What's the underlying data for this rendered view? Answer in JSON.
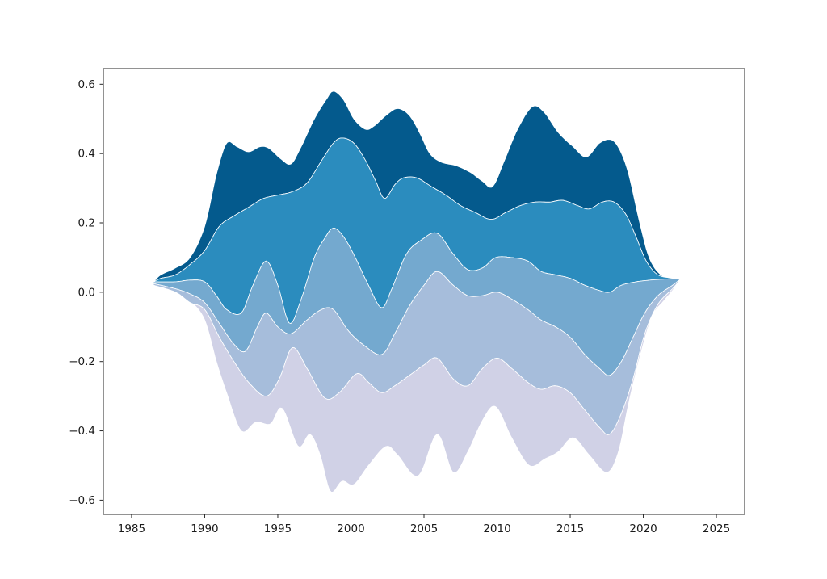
{
  "figure": {
    "background": "#ffffff",
    "spine_color": "#262626"
  },
  "chart_data": {
    "type": "area",
    "variant": "streamgraph",
    "title": "",
    "xlabel": "",
    "ylabel": "",
    "legend": "none",
    "grid": "off",
    "xlim": [
      1983.07,
      2026.93
    ],
    "ylim": [
      -0.641,
      0.645
    ],
    "x_ticks": [
      {
        "value": 1985,
        "label": "1985"
      },
      {
        "value": 1990,
        "label": "1990"
      },
      {
        "value": 1995,
        "label": "1995"
      },
      {
        "value": 2000,
        "label": "2000"
      },
      {
        "value": 2005,
        "label": "2005"
      },
      {
        "value": 2010,
        "label": "2010"
      },
      {
        "value": 2015,
        "label": "2015"
      },
      {
        "value": 2020,
        "label": "2020"
      },
      {
        "value": 2025,
        "label": "2025"
      }
    ],
    "y_ticks": [
      {
        "value": 0.6,
        "label": "0.6"
      },
      {
        "value": 0.4,
        "label": "0.4"
      },
      {
        "value": 0.2,
        "label": "0.2"
      },
      {
        "value": 0.0,
        "label": "0.0"
      },
      {
        "value": -0.2,
        "label": "−0.2"
      },
      {
        "value": -0.4,
        "label": "−0.4"
      },
      {
        "value": -0.6,
        "label": "−0.6"
      }
    ],
    "baseline": "symmetric (streamgraph / ThemeRiver), five stacked layers; layer thickness = boundary_above - boundary_below",
    "x_domain": [
      1986.5,
      2022.6
    ],
    "bands": [
      {
        "name": "layer-1",
        "color": "#045a8d",
        "top": "b0",
        "bottom": "b1"
      },
      {
        "name": "layer-2",
        "color": "#2b8cbe",
        "top": "b1",
        "bottom": "b2"
      },
      {
        "name": "layer-3",
        "color": "#74a9cf",
        "top": "b2",
        "bottom": "b3"
      },
      {
        "name": "layer-4",
        "color": "#a6bddb",
        "top": "b3",
        "bottom": "b4"
      },
      {
        "name": "layer-5",
        "color": "#d0d1e6",
        "top": "b4",
        "bottom": "b5"
      }
    ],
    "boundaries": {
      "b0": [
        [
          1986.5,
          0.03
        ],
        [
          1987,
          0.05
        ],
        [
          1988,
          0.07
        ],
        [
          1989,
          0.1
        ],
        [
          1990,
          0.19
        ],
        [
          1990.8,
          0.34
        ],
        [
          1991.5,
          0.43
        ],
        [
          1992.2,
          0.42
        ],
        [
          1993,
          0.405
        ],
        [
          1993.8,
          0.42
        ],
        [
          1994.4,
          0.415
        ],
        [
          1995.2,
          0.385
        ],
        [
          1995.9,
          0.37
        ],
        [
          1996.6,
          0.42
        ],
        [
          1997.5,
          0.5
        ],
        [
          1998.3,
          0.555
        ],
        [
          1998.8,
          0.58
        ],
        [
          1999.5,
          0.555
        ],
        [
          2000.2,
          0.5
        ],
        [
          2001,
          0.47
        ],
        [
          2001.6,
          0.48
        ],
        [
          2002.4,
          0.51
        ],
        [
          2003.2,
          0.53
        ],
        [
          2004,
          0.51
        ],
        [
          2004.7,
          0.46
        ],
        [
          2005.4,
          0.4
        ],
        [
          2006.2,
          0.375
        ],
        [
          2007.2,
          0.365
        ],
        [
          2008.2,
          0.345
        ],
        [
          2009,
          0.32
        ],
        [
          2009.7,
          0.305
        ],
        [
          2010.5,
          0.38
        ],
        [
          2011.4,
          0.47
        ],
        [
          2012.4,
          0.535
        ],
        [
          2013.2,
          0.52
        ],
        [
          2014.2,
          0.46
        ],
        [
          2015.2,
          0.42
        ],
        [
          2016.1,
          0.39
        ],
        [
          2017,
          0.43
        ],
        [
          2017.8,
          0.44
        ],
        [
          2018.4,
          0.41
        ],
        [
          2019,
          0.34
        ],
        [
          2019.7,
          0.21
        ],
        [
          2020.4,
          0.1
        ],
        [
          2021.2,
          0.05
        ],
        [
          2022,
          0.042
        ],
        [
          2022.6,
          0.04
        ]
      ],
      "b1": [
        [
          1986.5,
          0.03
        ],
        [
          1987,
          0.04
        ],
        [
          1988,
          0.05
        ],
        [
          1989,
          0.08
        ],
        [
          1990,
          0.12
        ],
        [
          1991,
          0.19
        ],
        [
          1992,
          0.22
        ],
        [
          1993,
          0.245
        ],
        [
          1994,
          0.27
        ],
        [
          1995,
          0.28
        ],
        [
          1996,
          0.29
        ],
        [
          1997,
          0.315
        ],
        [
          1998,
          0.38
        ],
        [
          1998.8,
          0.43
        ],
        [
          1999.4,
          0.445
        ],
        [
          2000.2,
          0.43
        ],
        [
          2001,
          0.38
        ],
        [
          2001.7,
          0.32
        ],
        [
          2002.3,
          0.27
        ],
        [
          2003,
          0.31
        ],
        [
          2003.6,
          0.33
        ],
        [
          2004.5,
          0.33
        ],
        [
          2005.5,
          0.305
        ],
        [
          2006.5,
          0.28
        ],
        [
          2007.5,
          0.25
        ],
        [
          2008.5,
          0.23
        ],
        [
          2009.6,
          0.21
        ],
        [
          2010.6,
          0.23
        ],
        [
          2011.6,
          0.25
        ],
        [
          2012.6,
          0.26
        ],
        [
          2013.6,
          0.26
        ],
        [
          2014.5,
          0.265
        ],
        [
          2015.5,
          0.25
        ],
        [
          2016.3,
          0.24
        ],
        [
          2017.2,
          0.26
        ],
        [
          2018,
          0.26
        ],
        [
          2018.8,
          0.225
        ],
        [
          2019.5,
          0.16
        ],
        [
          2020.2,
          0.09
        ],
        [
          2021,
          0.05
        ],
        [
          2022,
          0.041
        ],
        [
          2022.6,
          0.04
        ]
      ],
      "b2": [
        [
          1986.5,
          0.03
        ],
        [
          1988,
          0.03
        ],
        [
          1989,
          0.035
        ],
        [
          1990,
          0.03
        ],
        [
          1990.8,
          -0.01
        ],
        [
          1991.5,
          -0.05
        ],
        [
          1992.5,
          -0.06
        ],
        [
          1993.3,
          0.02
        ],
        [
          1994.2,
          0.09
        ],
        [
          1995,
          0.02
        ],
        [
          1995.8,
          -0.09
        ],
        [
          1996.6,
          -0.02
        ],
        [
          1997.5,
          0.1
        ],
        [
          1998.2,
          0.155
        ],
        [
          1998.8,
          0.185
        ],
        [
          1999.5,
          0.16
        ],
        [
          2000.3,
          0.1
        ],
        [
          2001.2,
          0.02
        ],
        [
          2002.1,
          -0.045
        ],
        [
          2002.8,
          0.01
        ],
        [
          2003.8,
          0.11
        ],
        [
          2004.8,
          0.15
        ],
        [
          2005.9,
          0.17
        ],
        [
          2007,
          0.11
        ],
        [
          2008,
          0.065
        ],
        [
          2009,
          0.07
        ],
        [
          2009.9,
          0.1
        ],
        [
          2011,
          0.1
        ],
        [
          2012.1,
          0.09
        ],
        [
          2013,
          0.06
        ],
        [
          2014,
          0.05
        ],
        [
          2015,
          0.04
        ],
        [
          2016,
          0.02
        ],
        [
          2017,
          0.005
        ],
        [
          2017.7,
          0.0
        ],
        [
          2018.5,
          0.02
        ],
        [
          2019.5,
          0.03
        ],
        [
          2020.5,
          0.035
        ],
        [
          2021.5,
          0.038
        ],
        [
          2022.6,
          0.04
        ]
      ],
      "b3": [
        [
          1986.5,
          0.025
        ],
        [
          1988,
          0.01
        ],
        [
          1989,
          -0.005
        ],
        [
          1990,
          -0.03
        ],
        [
          1991,
          -0.09
        ],
        [
          1992,
          -0.15
        ],
        [
          1992.8,
          -0.17
        ],
        [
          1993.6,
          -0.1
        ],
        [
          1994.2,
          -0.06
        ],
        [
          1995,
          -0.1
        ],
        [
          1995.9,
          -0.12
        ],
        [
          1997,
          -0.08
        ],
        [
          1998,
          -0.05
        ],
        [
          1998.8,
          -0.05
        ],
        [
          1999.8,
          -0.11
        ],
        [
          2000.8,
          -0.15
        ],
        [
          2002.1,
          -0.18
        ],
        [
          2003,
          -0.12
        ],
        [
          2004,
          -0.04
        ],
        [
          2005,
          0.02
        ],
        [
          2005.9,
          0.06
        ],
        [
          2007,
          0.02
        ],
        [
          2008,
          -0.01
        ],
        [
          2009,
          -0.01
        ],
        [
          2010,
          0.0
        ],
        [
          2011,
          -0.02
        ],
        [
          2012.1,
          -0.05
        ],
        [
          2013,
          -0.08
        ],
        [
          2014,
          -0.1
        ],
        [
          2015,
          -0.13
        ],
        [
          2016,
          -0.18
        ],
        [
          2017,
          -0.22
        ],
        [
          2017.7,
          -0.24
        ],
        [
          2018.5,
          -0.2
        ],
        [
          2019.3,
          -0.13
        ],
        [
          2020.1,
          -0.06
        ],
        [
          2021,
          -0.01
        ],
        [
          2022,
          0.02
        ],
        [
          2022.6,
          0.04
        ]
      ],
      "b4": [
        [
          1986.5,
          0.02
        ],
        [
          1988,
          0.0
        ],
        [
          1989,
          -0.03
        ],
        [
          1990,
          -0.05
        ],
        [
          1991,
          -0.13
        ],
        [
          1992,
          -0.2
        ],
        [
          1993,
          -0.26
        ],
        [
          1994.2,
          -0.3
        ],
        [
          1995.1,
          -0.25
        ],
        [
          1996,
          -0.16
        ],
        [
          1997,
          -0.22
        ],
        [
          1998.2,
          -0.305
        ],
        [
          1999.2,
          -0.29
        ],
        [
          2000.4,
          -0.235
        ],
        [
          2001.2,
          -0.26
        ],
        [
          2002.1,
          -0.29
        ],
        [
          2003,
          -0.27
        ],
        [
          2004,
          -0.24
        ],
        [
          2005,
          -0.21
        ],
        [
          2005.9,
          -0.19
        ],
        [
          2007,
          -0.25
        ],
        [
          2008,
          -0.27
        ],
        [
          2009,
          -0.22
        ],
        [
          2010,
          -0.19
        ],
        [
          2011,
          -0.22
        ],
        [
          2012.1,
          -0.26
        ],
        [
          2013,
          -0.28
        ],
        [
          2014,
          -0.27
        ],
        [
          2015,
          -0.29
        ],
        [
          2016,
          -0.34
        ],
        [
          2017,
          -0.39
        ],
        [
          2017.7,
          -0.41
        ],
        [
          2018.5,
          -0.35
        ],
        [
          2019.3,
          -0.25
        ],
        [
          2020.1,
          -0.12
        ],
        [
          2021,
          -0.035
        ],
        [
          2022,
          0.01
        ],
        [
          2022.6,
          0.04
        ]
      ],
      "b5": [
        [
          1986.5,
          0.02
        ],
        [
          1987,
          0.015
        ],
        [
          1988,
          0.0
        ],
        [
          1989,
          -0.025
        ],
        [
          1990,
          -0.08
        ],
        [
          1990.8,
          -0.2
        ],
        [
          1991.5,
          -0.29
        ],
        [
          1992.5,
          -0.4
        ],
        [
          1993.5,
          -0.375
        ],
        [
          1994.5,
          -0.38
        ],
        [
          1995.3,
          -0.335
        ],
        [
          1996.4,
          -0.445
        ],
        [
          1997.2,
          -0.41
        ],
        [
          1997.9,
          -0.47
        ],
        [
          1998.6,
          -0.575
        ],
        [
          1999.4,
          -0.545
        ],
        [
          2000.2,
          -0.555
        ],
        [
          2001.2,
          -0.5
        ],
        [
          2002.4,
          -0.445
        ],
        [
          2003.2,
          -0.47
        ],
        [
          2004.6,
          -0.53
        ],
        [
          2005.9,
          -0.41
        ],
        [
          2007,
          -0.52
        ],
        [
          2008,
          -0.46
        ],
        [
          2009,
          -0.37
        ],
        [
          2009.9,
          -0.33
        ],
        [
          2011,
          -0.42
        ],
        [
          2012.2,
          -0.5
        ],
        [
          2013.3,
          -0.48
        ],
        [
          2014.2,
          -0.46
        ],
        [
          2015.2,
          -0.42
        ],
        [
          2016.3,
          -0.47
        ],
        [
          2017.5,
          -0.52
        ],
        [
          2018.3,
          -0.46
        ],
        [
          2019,
          -0.32
        ],
        [
          2019.8,
          -0.18
        ],
        [
          2020.6,
          -0.07
        ],
        [
          2021.4,
          -0.025
        ],
        [
          2022,
          0.005
        ],
        [
          2022.6,
          0.04
        ]
      ]
    }
  }
}
